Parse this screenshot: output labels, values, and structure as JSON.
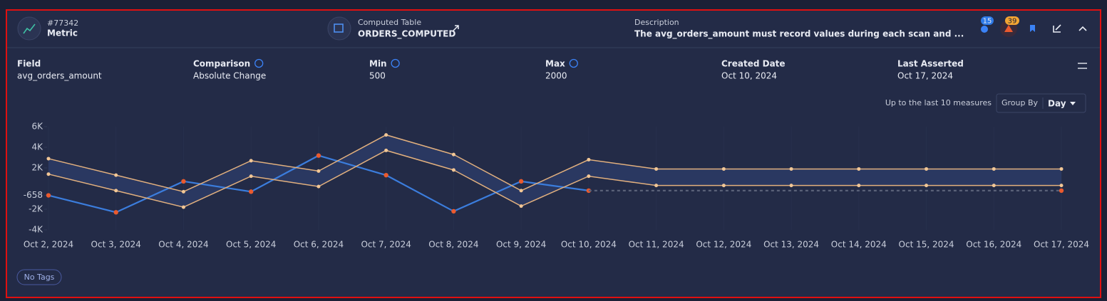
{
  "header": {
    "id": "#77342",
    "kind": "Metric",
    "table_label": "Computed Table",
    "table": "ORDERS_COMPUTED",
    "description_label": "Description",
    "description": "The avg_orders_amount must record values during each scan and ...",
    "badges": [
      15,
      39
    ]
  },
  "fields": [
    {
      "label": "Field",
      "value": "avg_orders_amount"
    },
    {
      "label": "Comparison",
      "value": "Absolute Change"
    },
    {
      "label": "Min",
      "value": "500"
    },
    {
      "label": "Max",
      "value": "2000"
    },
    {
      "label": "Created Date",
      "value": "Oct 10, 2024"
    },
    {
      "label": "Last Asserted",
      "value": "Oct 17, 2024"
    }
  ],
  "controls": {
    "range_text": "Up to the last 10 measures",
    "group_by_label": "Group By",
    "group_by_value": "Day"
  },
  "tags": "No Tags",
  "chart_data": {
    "type": "line",
    "categories": [
      "Oct 2, 2024",
      "Oct 3, 2024",
      "Oct 4, 2024",
      "Oct 5, 2024",
      "Oct 6, 2024",
      "Oct 7, 2024",
      "Oct 8, 2024",
      "Oct 9, 2024",
      "Oct 10, 2024",
      "Oct 11, 2024",
      "Oct 12, 2024",
      "Oct 13, 2024",
      "Oct 14, 2024",
      "Oct 15, 2024",
      "Oct 16, 2024",
      "Oct 17, 2024"
    ],
    "ylim": [
      -4000,
      6000
    ],
    "yticks": [
      {
        "value": -4000,
        "label": "-4K"
      },
      {
        "value": -2000,
        "label": "-2K"
      },
      -658,
      {
        "value": 2000,
        "label": "2K"
      },
      {
        "value": 4000,
        "label": "4K"
      },
      {
        "value": 6000,
        "label": "6K"
      }
    ],
    "band_color": "#2c3b66",
    "series": [
      {
        "color": "#3b7ddd",
        "marker_color": "#ea5a2e",
        "markers": "all",
        "dashed": false,
        "values": [
          -658,
          -2300,
          700,
          -300,
          3200,
          1300,
          -2200,
          700,
          -200,
          null,
          null,
          null,
          null,
          null,
          null,
          null
        ]
      },
      {
        "color": "#5a6178",
        "marker_color": "#ea5a2e",
        "markers": "last",
        "dashed": true,
        "values": [
          null,
          null,
          null,
          null,
          null,
          null,
          null,
          null,
          -200,
          -200,
          -200,
          -200,
          -200,
          -200,
          -200,
          -200
        ]
      },
      {
        "color": "#e2b07e",
        "marker_color": "#f2c796",
        "markers": "all",
        "dashed": false,
        "band": "upper",
        "values": [
          2900,
          1300,
          -300,
          2700,
          1700,
          5200,
          3300,
          -200,
          2800,
          1900,
          1900,
          1900,
          1900,
          1900,
          1900,
          1900
        ]
      },
      {
        "color": "#e2b07e",
        "marker_color": "#f2c796",
        "markers": "all",
        "dashed": false,
        "band": "lower",
        "values": [
          1400,
          -200,
          -1800,
          1200,
          200,
          3700,
          1800,
          -1700,
          1200,
          300,
          300,
          300,
          300,
          300,
          300,
          300
        ]
      }
    ]
  }
}
